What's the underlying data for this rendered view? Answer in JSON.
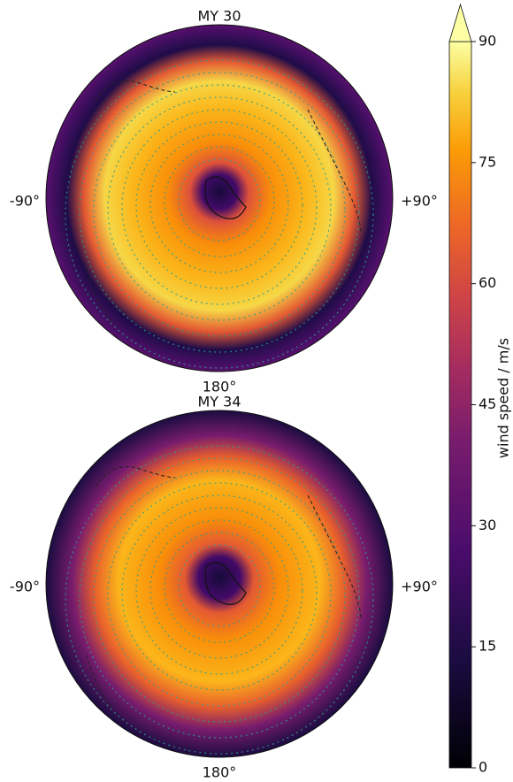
{
  "chart_data": [
    {
      "type": "polar-map",
      "title": "MY 30",
      "lon_labels": [
        "-90°",
        "+90°",
        "180°"
      ]
    },
    {
      "type": "polar-map",
      "title": "MY 34",
      "lon_labels": [
        "-90°",
        "+90°",
        "180°"
      ]
    }
  ],
  "colorbar": {
    "label": "wind speed / m/s",
    "ylim": [
      0,
      90
    ],
    "yticks": [
      0,
      15,
      30,
      45,
      60,
      75,
      90
    ],
    "extend": "max"
  }
}
